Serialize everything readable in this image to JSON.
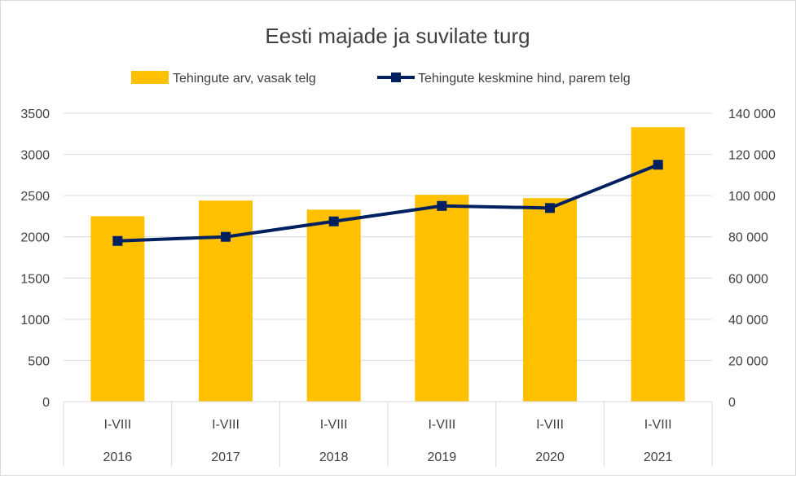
{
  "chart_data": {
    "type": "bar",
    "title": "Eesti majade ja suvilate turg",
    "categories": [
      {
        "period": "I-VIII",
        "year": "2016"
      },
      {
        "period": "I-VIII",
        "year": "2017"
      },
      {
        "period": "I-VIII",
        "year": "2018"
      },
      {
        "period": "I-VIII",
        "year": "2019"
      },
      {
        "period": "I-VIII",
        "year": "2020"
      },
      {
        "period": "I-VIII",
        "year": "2021"
      }
    ],
    "series": [
      {
        "name": "Tehingute arv, vasak telg",
        "type": "bar",
        "axis": "left",
        "color": "#FFC000",
        "values": [
          2250,
          2440,
          2330,
          2510,
          2470,
          3330
        ]
      },
      {
        "name": "Tehingute keskmine hind, parem telg",
        "type": "line",
        "axis": "right",
        "color": "#002060",
        "marker": "square",
        "values": [
          78000,
          80000,
          87500,
          95000,
          94000,
          115000
        ]
      }
    ],
    "y_left": {
      "min": 0,
      "max": 3500,
      "ticks": [
        "0",
        "500",
        "1000",
        "1500",
        "2000",
        "2500",
        "3000",
        "3500"
      ]
    },
    "y_right": {
      "min": 0,
      "max": 140000,
      "ticks": [
        "0",
        "20 000",
        "40 000",
        "60 000",
        "80 000",
        "100 000",
        "120 000",
        "140 000"
      ]
    },
    "grid": true,
    "legend_position": "top"
  }
}
